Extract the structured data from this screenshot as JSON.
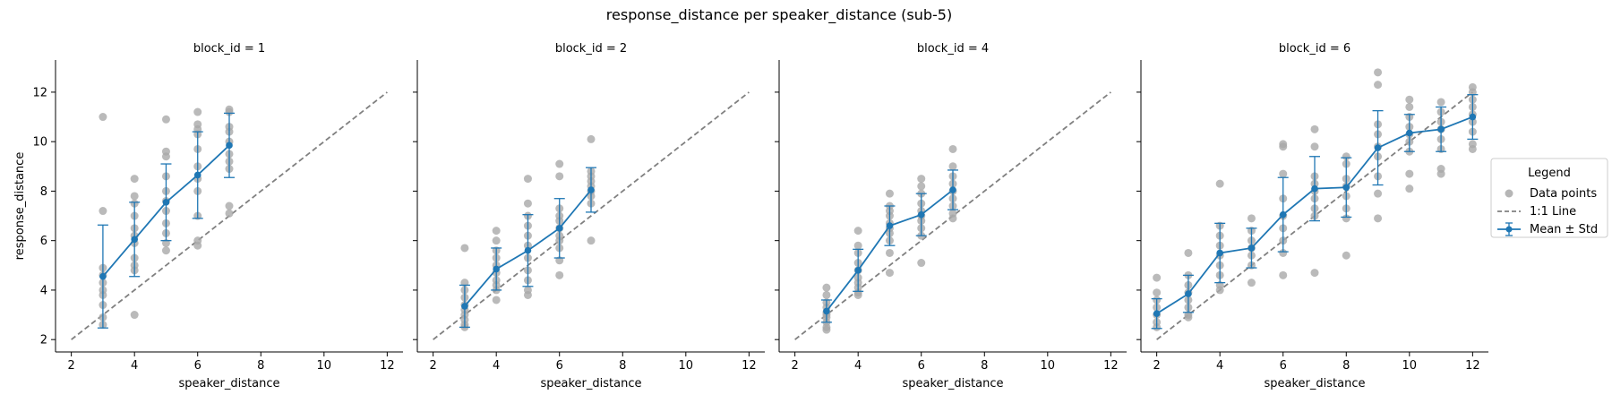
{
  "figure": {
    "title": "response_distance per speaker_distance (sub-5)"
  },
  "legend": {
    "title": "Legend",
    "placement": "right",
    "items": [
      {
        "label": "Data points",
        "kind": "scatter",
        "color": "#a9a9a9"
      },
      {
        "label": "1:1 Line",
        "kind": "dashed-line",
        "color": "#808080"
      },
      {
        "label": "Mean ± Std",
        "kind": "errorbar-line",
        "color": "#1f77b4"
      }
    ]
  },
  "colors": {
    "points": "#a9a9a9",
    "identity_line": "#808080",
    "mean": "#1f77b4",
    "axis": "#000000"
  },
  "chart_data": [
    {
      "type": "scatter",
      "title": "block_id = 1",
      "xlabel": "speaker_distance",
      "ylabel": "response_distance",
      "xlim": [
        1.5,
        12.5
      ],
      "ylim": [
        1.5,
        13.3
      ],
      "xticks": [
        2,
        4,
        6,
        8,
        10,
        12
      ],
      "yticks": [
        2,
        4,
        6,
        8,
        10,
        12
      ],
      "grid": false,
      "identity_line": {
        "from": [
          2,
          2
        ],
        "to": [
          12,
          12
        ]
      },
      "points": [
        [
          3,
          11.0
        ],
        [
          3,
          7.2
        ],
        [
          3,
          4.9
        ],
        [
          3,
          4.6
        ],
        [
          3,
          4.3
        ],
        [
          3,
          4.0
        ],
        [
          3,
          3.8
        ],
        [
          3,
          3.4
        ],
        [
          3,
          2.9
        ],
        [
          3,
          2.6
        ],
        [
          4,
          8.5
        ],
        [
          4,
          7.8
        ],
        [
          4,
          7.5
        ],
        [
          4,
          7.0
        ],
        [
          4,
          6.5
        ],
        [
          4,
          6.2
        ],
        [
          4,
          5.9
        ],
        [
          4,
          5.3
        ],
        [
          4,
          5.0
        ],
        [
          4,
          4.8
        ],
        [
          4,
          3.0
        ],
        [
          5,
          10.9
        ],
        [
          5,
          9.6
        ],
        [
          5,
          9.4
        ],
        [
          5,
          8.6
        ],
        [
          5,
          8.0
        ],
        [
          5,
          7.6
        ],
        [
          5,
          7.2
        ],
        [
          5,
          6.7
        ],
        [
          5,
          6.3
        ],
        [
          5,
          5.9
        ],
        [
          5,
          5.6
        ],
        [
          6,
          11.2
        ],
        [
          6,
          10.7
        ],
        [
          6,
          10.5
        ],
        [
          6,
          10.3
        ],
        [
          6,
          9.7
        ],
        [
          6,
          9.0
        ],
        [
          6,
          8.5
        ],
        [
          6,
          8.0
        ],
        [
          6,
          7.0
        ],
        [
          6,
          6.0
        ],
        [
          6,
          5.8
        ],
        [
          7,
          11.3
        ],
        [
          7,
          11.2
        ],
        [
          7,
          10.6
        ],
        [
          7,
          10.4
        ],
        [
          7,
          10.0
        ],
        [
          7,
          9.5
        ],
        [
          7,
          9.2
        ],
        [
          7,
          8.9
        ],
        [
          7,
          7.4
        ],
        [
          7,
          7.1
        ]
      ],
      "mean": [
        {
          "x": 3,
          "y": 4.55,
          "std": 2.08
        },
        {
          "x": 4,
          "y": 6.05,
          "std": 1.5
        },
        {
          "x": 5,
          "y": 7.55,
          "std": 1.55
        },
        {
          "x": 6,
          "y": 8.65,
          "std": 1.75
        },
        {
          "x": 7,
          "y": 9.85,
          "std": 1.3
        }
      ]
    },
    {
      "type": "scatter",
      "title": "block_id = 2",
      "xlabel": "speaker_distance",
      "ylabel": "",
      "xlim": [
        1.5,
        12.5
      ],
      "ylim": [
        1.5,
        13.3
      ],
      "xticks": [
        2,
        4,
        6,
        8,
        10,
        12
      ],
      "yticks": [
        2,
        4,
        6,
        8,
        10,
        12
      ],
      "grid": false,
      "identity_line": {
        "from": [
          2,
          2
        ],
        "to": [
          12,
          12
        ]
      },
      "points": [
        [
          3,
          5.7
        ],
        [
          3,
          4.3
        ],
        [
          3,
          4.0
        ],
        [
          3,
          3.7
        ],
        [
          3,
          3.4
        ],
        [
          3,
          3.2
        ],
        [
          3,
          3.0
        ],
        [
          3,
          2.8
        ],
        [
          3,
          2.6
        ],
        [
          3,
          2.5
        ],
        [
          4,
          6.4
        ],
        [
          4,
          6.0
        ],
        [
          4,
          5.6
        ],
        [
          4,
          5.3
        ],
        [
          4,
          5.0
        ],
        [
          4,
          4.7
        ],
        [
          4,
          4.4
        ],
        [
          4,
          4.2
        ],
        [
          4,
          4.0
        ],
        [
          4,
          3.6
        ],
        [
          5,
          8.5
        ],
        [
          5,
          7.5
        ],
        [
          5,
          7.0
        ],
        [
          5,
          6.6
        ],
        [
          5,
          6.2
        ],
        [
          5,
          5.8
        ],
        [
          5,
          5.3
        ],
        [
          5,
          4.8
        ],
        [
          5,
          4.4
        ],
        [
          5,
          4.0
        ],
        [
          5,
          3.8
        ],
        [
          6,
          9.1
        ],
        [
          6,
          8.6
        ],
        [
          6,
          7.3
        ],
        [
          6,
          7.0
        ],
        [
          6,
          6.8
        ],
        [
          6,
          6.5
        ],
        [
          6,
          6.2
        ],
        [
          6,
          6.0
        ],
        [
          6,
          5.7
        ],
        [
          6,
          5.2
        ],
        [
          6,
          4.6
        ],
        [
          7,
          10.1
        ],
        [
          7,
          8.8
        ],
        [
          7,
          8.6
        ],
        [
          7,
          8.4
        ],
        [
          7,
          8.2
        ],
        [
          7,
          8.0
        ],
        [
          7,
          7.8
        ],
        [
          7,
          7.5
        ],
        [
          7,
          6.0
        ]
      ],
      "mean": [
        {
          "x": 3,
          "y": 3.35,
          "std": 0.85
        },
        {
          "x": 4,
          "y": 4.85,
          "std": 0.85
        },
        {
          "x": 5,
          "y": 5.6,
          "std": 1.45
        },
        {
          "x": 6,
          "y": 6.5,
          "std": 1.2
        },
        {
          "x": 7,
          "y": 8.05,
          "std": 0.9
        }
      ]
    },
    {
      "type": "scatter",
      "title": "block_id = 4",
      "xlabel": "speaker_distance",
      "ylabel": "",
      "xlim": [
        1.5,
        12.5
      ],
      "ylim": [
        1.5,
        13.3
      ],
      "xticks": [
        2,
        4,
        6,
        8,
        10,
        12
      ],
      "yticks": [
        2,
        4,
        6,
        8,
        10,
        12
      ],
      "grid": false,
      "identity_line": {
        "from": [
          2,
          2
        ],
        "to": [
          12,
          12
        ]
      },
      "points": [
        [
          3,
          4.1
        ],
        [
          3,
          3.8
        ],
        [
          3,
          3.5
        ],
        [
          3,
          3.3
        ],
        [
          3,
          3.1
        ],
        [
          3,
          3.0
        ],
        [
          3,
          2.9
        ],
        [
          3,
          2.7
        ],
        [
          3,
          2.5
        ],
        [
          3,
          2.4
        ],
        [
          4,
          6.4
        ],
        [
          4,
          5.8
        ],
        [
          4,
          5.5
        ],
        [
          4,
          5.1
        ],
        [
          4,
          4.8
        ],
        [
          4,
          4.5
        ],
        [
          4,
          4.3
        ],
        [
          4,
          4.1
        ],
        [
          4,
          3.9
        ],
        [
          4,
          3.8
        ],
        [
          5,
          7.9
        ],
        [
          5,
          7.4
        ],
        [
          5,
          7.2
        ],
        [
          5,
          7.0
        ],
        [
          5,
          6.7
        ],
        [
          5,
          6.5
        ],
        [
          5,
          6.3
        ],
        [
          5,
          6.0
        ],
        [
          5,
          5.5
        ],
        [
          5,
          4.7
        ],
        [
          6,
          8.5
        ],
        [
          6,
          8.2
        ],
        [
          6,
          7.9
        ],
        [
          6,
          7.5
        ],
        [
          6,
          7.2
        ],
        [
          6,
          7.0
        ],
        [
          6,
          6.8
        ],
        [
          6,
          6.5
        ],
        [
          6,
          6.2
        ],
        [
          6,
          5.1
        ],
        [
          7,
          9.7
        ],
        [
          7,
          9.0
        ],
        [
          7,
          8.6
        ],
        [
          7,
          8.3
        ],
        [
          7,
          8.0
        ],
        [
          7,
          7.7
        ],
        [
          7,
          7.4
        ],
        [
          7,
          7.1
        ],
        [
          7,
          6.9
        ]
      ],
      "mean": [
        {
          "x": 3,
          "y": 3.15,
          "std": 0.45
        },
        {
          "x": 4,
          "y": 4.8,
          "std": 0.85
        },
        {
          "x": 5,
          "y": 6.6,
          "std": 0.8
        },
        {
          "x": 6,
          "y": 7.05,
          "std": 0.85
        },
        {
          "x": 7,
          "y": 8.05,
          "std": 0.8
        }
      ]
    },
    {
      "type": "scatter",
      "title": "block_id = 6",
      "xlabel": "speaker_distance",
      "ylabel": "",
      "xlim": [
        1.5,
        12.5
      ],
      "ylim": [
        1.5,
        13.3
      ],
      "xticks": [
        2,
        4,
        6,
        8,
        10,
        12
      ],
      "yticks": [
        2,
        4,
        6,
        8,
        10,
        12
      ],
      "grid": false,
      "identity_line": {
        "from": [
          2,
          2
        ],
        "to": [
          12,
          12
        ]
      },
      "points": [
        [
          2,
          4.5
        ],
        [
          2,
          3.9
        ],
        [
          2,
          3.6
        ],
        [
          2,
          3.3
        ],
        [
          2,
          3.0
        ],
        [
          2,
          2.7
        ],
        [
          2,
          2.5
        ],
        [
          3,
          5.5
        ],
        [
          3,
          4.6
        ],
        [
          3,
          4.2
        ],
        [
          3,
          3.9
        ],
        [
          3,
          3.6
        ],
        [
          3,
          3.3
        ],
        [
          3,
          3.0
        ],
        [
          3,
          2.9
        ],
        [
          4,
          8.3
        ],
        [
          4,
          6.6
        ],
        [
          4,
          6.2
        ],
        [
          4,
          5.8
        ],
        [
          4,
          5.4
        ],
        [
          4,
          5.0
        ],
        [
          4,
          4.6
        ],
        [
          4,
          4.2
        ],
        [
          4,
          4.0
        ],
        [
          5,
          6.9
        ],
        [
          5,
          6.4
        ],
        [
          5,
          6.0
        ],
        [
          5,
          5.7
        ],
        [
          5,
          5.4
        ],
        [
          5,
          5.0
        ],
        [
          5,
          4.3
        ],
        [
          6,
          9.9
        ],
        [
          6,
          9.8
        ],
        [
          6,
          8.7
        ],
        [
          6,
          7.7
        ],
        [
          6,
          7.0
        ],
        [
          6,
          6.5
        ],
        [
          6,
          6.0
        ],
        [
          6,
          5.5
        ],
        [
          6,
          4.6
        ],
        [
          7,
          10.5
        ],
        [
          7,
          9.8
        ],
        [
          7,
          8.6
        ],
        [
          7,
          8.3
        ],
        [
          7,
          8.0
        ],
        [
          7,
          7.7
        ],
        [
          7,
          7.3
        ],
        [
          7,
          7.0
        ],
        [
          7,
          4.7
        ],
        [
          8,
          9.4
        ],
        [
          8,
          9.1
        ],
        [
          8,
          8.5
        ],
        [
          8,
          8.2
        ],
        [
          8,
          7.8
        ],
        [
          8,
          7.3
        ],
        [
          8,
          6.9
        ],
        [
          8,
          5.4
        ],
        [
          9,
          12.8
        ],
        [
          9,
          12.3
        ],
        [
          9,
          10.7
        ],
        [
          9,
          10.3
        ],
        [
          9,
          9.8
        ],
        [
          9,
          9.4
        ],
        [
          9,
          8.6
        ],
        [
          9,
          7.9
        ],
        [
          9,
          6.9
        ],
        [
          10,
          11.7
        ],
        [
          10,
          11.4
        ],
        [
          10,
          11.0
        ],
        [
          10,
          10.6
        ],
        [
          10,
          10.3
        ],
        [
          10,
          10.0
        ],
        [
          10,
          9.6
        ],
        [
          10,
          8.7
        ],
        [
          10,
          8.1
        ],
        [
          11,
          11.6
        ],
        [
          11,
          11.2
        ],
        [
          11,
          10.8
        ],
        [
          11,
          10.5
        ],
        [
          11,
          10.1
        ],
        [
          11,
          9.7
        ],
        [
          11,
          8.9
        ],
        [
          11,
          8.7
        ],
        [
          12,
          12.2
        ],
        [
          12,
          12.0
        ],
        [
          12,
          11.7
        ],
        [
          12,
          11.4
        ],
        [
          12,
          11.1
        ],
        [
          12,
          10.8
        ],
        [
          12,
          10.4
        ],
        [
          12,
          9.9
        ],
        [
          12,
          9.7
        ]
      ],
      "mean": [
        {
          "x": 2,
          "y": 3.05,
          "std": 0.6
        },
        {
          "x": 3,
          "y": 3.85,
          "std": 0.75
        },
        {
          "x": 4,
          "y": 5.5,
          "std": 1.2
        },
        {
          "x": 5,
          "y": 5.7,
          "std": 0.8
        },
        {
          "x": 6,
          "y": 7.05,
          "std": 1.5
        },
        {
          "x": 7,
          "y": 8.1,
          "std": 1.3
        },
        {
          "x": 8,
          "y": 8.15,
          "std": 1.2
        },
        {
          "x": 9,
          "y": 9.75,
          "std": 1.5
        },
        {
          "x": 10,
          "y": 10.35,
          "std": 0.75
        },
        {
          "x": 11,
          "y": 10.5,
          "std": 0.9
        },
        {
          "x": 12,
          "y": 11.0,
          "std": 0.9
        }
      ]
    }
  ]
}
